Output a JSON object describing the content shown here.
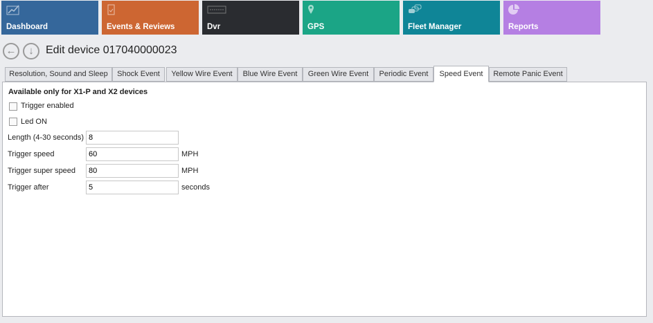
{
  "tiles": [
    {
      "label": "Dashboard",
      "icon": "chart-line-icon",
      "color": "#35679b"
    },
    {
      "label": "Events & Reviews",
      "icon": "clipboard-check-icon",
      "color": "#cd6632"
    },
    {
      "label": "Dvr",
      "icon": "merge-logo-icon",
      "color": "#2a2c30"
    },
    {
      "label": "GPS",
      "icon": "map-pin-icon",
      "color": "#1ba586"
    },
    {
      "label": "Fleet Manager",
      "icon": "cars-icon",
      "color": "#0f8597"
    },
    {
      "label": "Reports",
      "icon": "pie-chart-icon",
      "color": "#b57fe3"
    }
  ],
  "page_title": "Edit device 017040000023",
  "tabs": [
    "Resolution, Sound and Sleep",
    "Shock Event",
    "Yellow Wire Event",
    "Blue Wire Event",
    "Green Wire Event",
    "Periodic Event",
    "Speed Event",
    "Remote Panic Event"
  ],
  "active_tab": "Speed Event",
  "form": {
    "header": "Available only for X1-P and X2 devices",
    "trigger_enabled": {
      "label": "Trigger enabled",
      "checked": false
    },
    "led_on": {
      "label": "Led ON",
      "checked": false
    },
    "length": {
      "label": "Length (4-30 seconds)",
      "value": "8"
    },
    "trigger_speed": {
      "label": "Trigger speed",
      "value": "60",
      "unit": "MPH"
    },
    "trigger_super_speed": {
      "label": "Trigger super speed",
      "value": "80",
      "unit": "MPH"
    },
    "trigger_after": {
      "label": "Trigger after",
      "value": "5",
      "unit": "seconds"
    }
  }
}
